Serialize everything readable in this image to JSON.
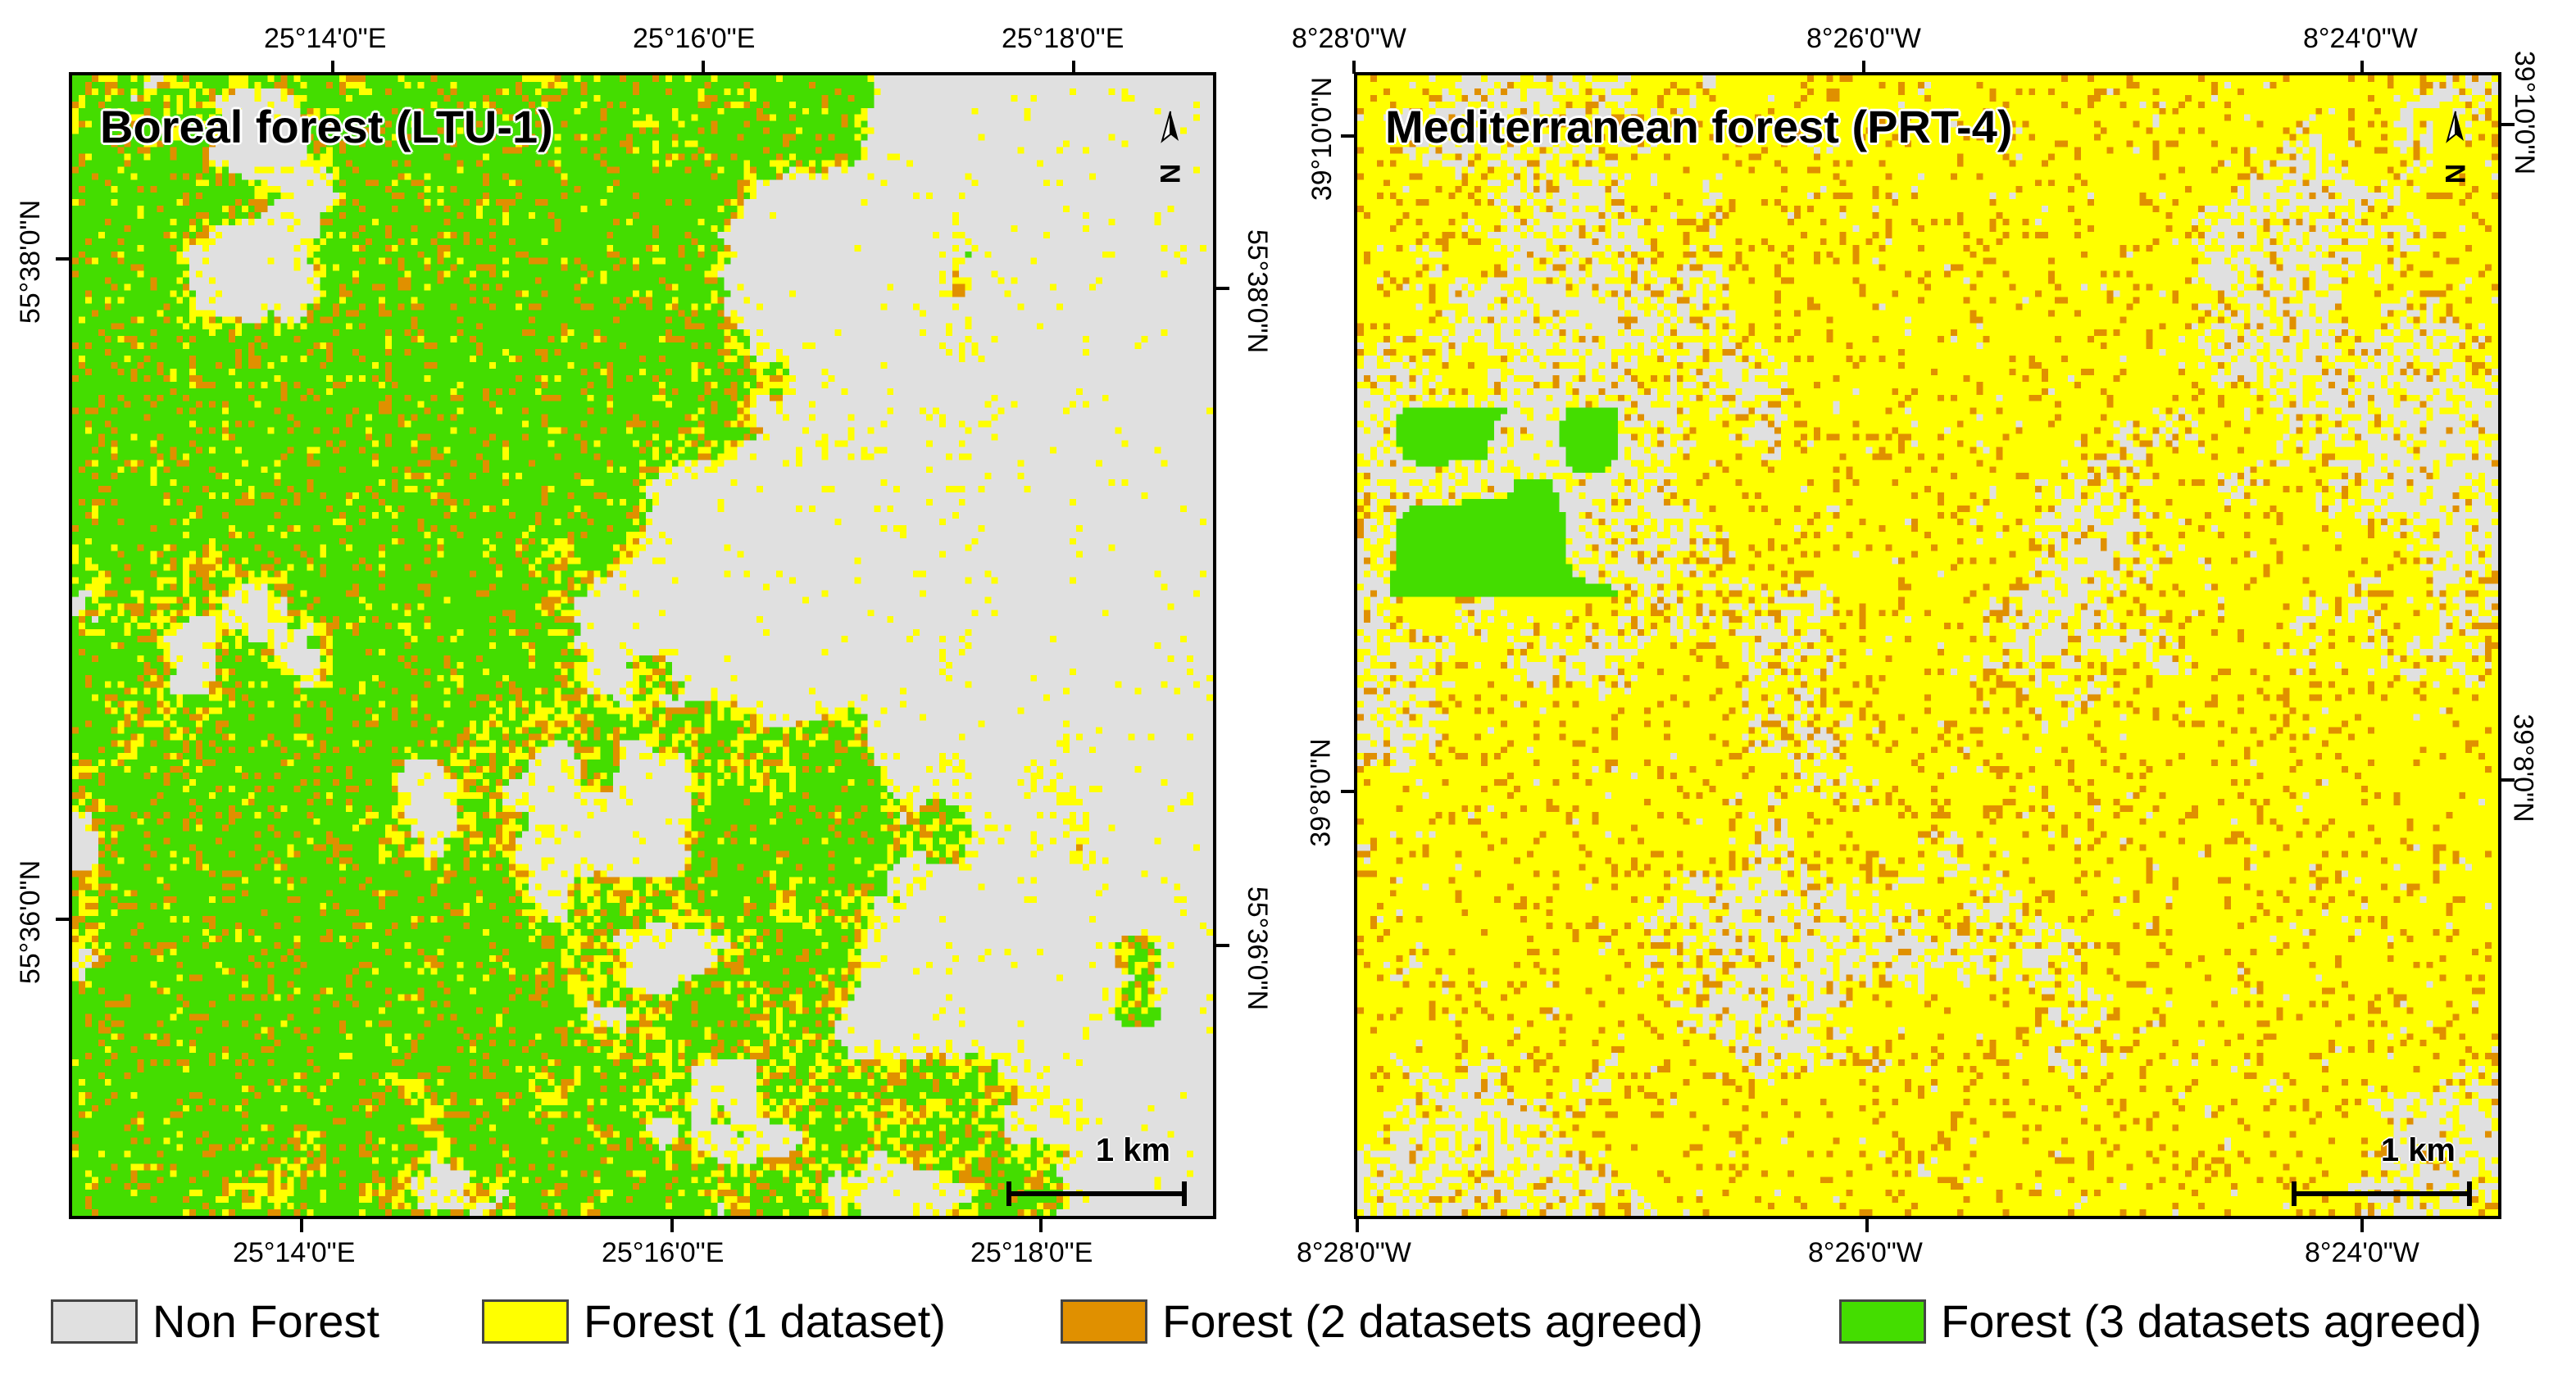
{
  "colors": {
    "non_forest": "#e0e0e0",
    "forest_1": "#ffff00",
    "forest_2": "#e09000",
    "forest_3": "#44dd00"
  },
  "maps": [
    {
      "title": "Boreal forest (LTU-1)",
      "top_ticks": [
        "25°14'0\"E",
        "25°16'0\"E",
        "25°18'0\"E"
      ],
      "bottom_ticks": [
        "25°14'0\"E",
        "25°16'0\"E",
        "25°18'0\"E"
      ],
      "left_ticks": [
        "55°38'0\"N",
        "55°36'0\"N"
      ],
      "right_ticks": [
        "55°38'0\"N",
        "55°36'0\"N"
      ],
      "north_label": "N",
      "scale_label": "1 km"
    },
    {
      "title": "Mediterranean forest (PRT-4)",
      "top_ticks": [
        "8°28'0\"W",
        "8°26'0\"W",
        "8°24'0\"W"
      ],
      "bottom_ticks": [
        "8°28'0\"W",
        "8°26'0\"W",
        "8°24'0\"W"
      ],
      "left_ticks": [
        "39°10'0\"N",
        "39°8'0\"N"
      ],
      "right_ticks": [
        "39°10'0\"N",
        "39°8'0\"N"
      ],
      "north_label": "N",
      "scale_label": "1 km"
    }
  ],
  "legend": [
    {
      "label": "Non Forest",
      "color": "#e0e0e0"
    },
    {
      "label": "Forest (1 dataset)",
      "color": "#ffff00"
    },
    {
      "label": "Forest (2 datasets agreed)",
      "color": "#e09000"
    },
    {
      "label": "Forest (3 datasets agreed)",
      "color": "#44dd00"
    }
  ]
}
